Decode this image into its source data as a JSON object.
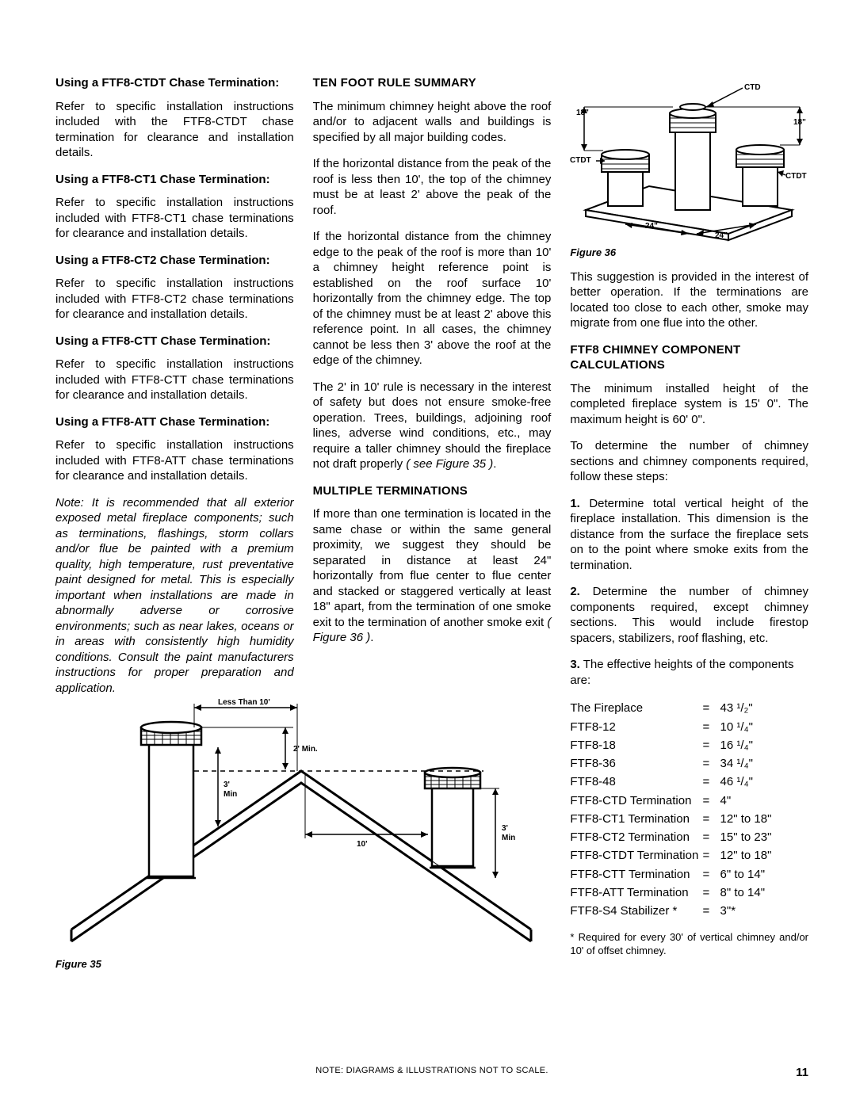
{
  "col1": {
    "sections": [
      {
        "heading": "Using a FTF8-CTDT Chase Termination:",
        "body": "Refer to specific installation instructions included with the FTF8-CTDT chase termination for clearance and installation details."
      },
      {
        "heading": "Using a FTF8-CT1 Chase Termination:",
        "body": "Refer to specific installation instructions included with FTF8-CT1 chase terminations for clearance and installation details."
      },
      {
        "heading": "Using a FTF8-CT2 Chase Termination:",
        "body": "Refer to specific installation instructions included with FTF8-CT2 chase terminations for clearance and installation details."
      },
      {
        "heading": "Using a FTF8-CTT Chase Termination:",
        "body": "Refer to specific installation instructions included with FTF8-CTT chase terminations for clearance and installation details."
      },
      {
        "heading": "Using a FTF8-ATT Chase Termination:",
        "body": "Refer to specific installation instructions included with FTF8-ATT chase terminations for clearance and installation details."
      }
    ],
    "note": "Note: It is recommended that all exterior exposed metal fireplace components; such as terminations, flashings, storm collars and/or flue be painted with a premium quality, high temperature, rust preventative paint designed for metal. This is especially important when installations are made in abnormally adverse or corrosive environments; such as near lakes, oceans or in areas with consistently high humidity conditions. Consult the paint manufacturers instructions for proper preparation and application."
  },
  "col2": {
    "h1": "TEN FOOT RULE SUMMARY",
    "p1": "The minimum chimney height above the roof and/or to adjacent walls and buildings is specified by all major building codes.",
    "p2": "If the horizontal distance from the peak of the roof is less then 10', the top of the chimney must be at least 2' above the peak of the roof.",
    "p3": "If the horizontal distance from the chimney edge to the peak of the roof is more than 10' a chimney height reference point is established on the roof surface 10' horizontally from the chimney edge. The top of the chimney must be at least 2' above this reference point. In all cases, the chimney cannot be less then 3' above the roof at the edge of the chimney.",
    "p4_pre": "The 2' in 10' rule is necessary in the interest of safety but does not ensure smoke-free operation. Trees, buildings, adjoining roof lines, adverse wind conditions, etc., may require a taller chimney should the fireplace not draft properly ",
    "p4_ref": "( see Figure 35 )",
    "p4_post": ".",
    "h2": "MULTIPLE TERMINATIONS",
    "p5_pre": "If more than one termination is located in the same chase or within the same general proximity, we suggest they should be separated in distance at least 24\" horizontally from flue center to flue center and stacked or staggered vertically at least 18\" apart, from the termination of one smoke exit to the termination of another smoke exit ",
    "p5_ref": "( Figure 36 )",
    "p5_post": "."
  },
  "col3": {
    "fig36_caption": "Figure 36",
    "p1": "This suggestion is provided in the interest of better operation. If the terminations are located too close to each other, smoke may migrate from one flue into the other.",
    "h1": "FTF8 CHIMNEY COMPONENT CALCULATIONS",
    "p2": "The minimum installed height of the completed fireplace system is 15' 0\". The maximum height is 60' 0\".",
    "p3": "To determine the number of chimney sections and chimney components required, follow these steps:",
    "s1_num": "1.",
    "s1": " Determine total vertical height of the fireplace installation. This dimension is the distance from the surface the fireplace sets on to the point where smoke exits from the termination.",
    "s2_num": "2.",
    "s2": " Determine the number of chimney components required, except chimney sections. This would include firestop spacers, stabilizers, roof flashing, etc.",
    "s3_num": "3.",
    "s3": " The effective heights of the components are:",
    "components": [
      {
        "name": "The Fireplace",
        "val": "43 ¹/₂\""
      },
      {
        "name": "FTF8-12",
        "val": "10 ¹/₄\""
      },
      {
        "name": "FTF8-18",
        "val": "16 ¹/₄\""
      },
      {
        "name": "FTF8-36",
        "val": "34 ¹/₄\""
      },
      {
        "name": "FTF8-48",
        "val": "46 ¹/₄\""
      },
      {
        "name": "FTF8-CTD Termination",
        "val": "4\""
      },
      {
        "name": "FTF8-CT1 Termination",
        "val": "12\" to 18\""
      },
      {
        "name": "FTF8-CT2 Termination",
        "val": "15\" to 23\""
      },
      {
        "name": "FTF8-CTDT Termination",
        "val": "12\" to 18\""
      },
      {
        "name": "FTF8-CTT Termination",
        "val": "6\" to 14\""
      },
      {
        "name": "FTF8-ATT Termination",
        "val": "8\" to 14\""
      },
      {
        "name": "FTF8-S4 Stabilizer *",
        "val": "3\"*"
      }
    ],
    "footnote": "* Required for every 30' of vertical chimney and/or 10' of offset chimney."
  },
  "fig35": {
    "caption": "Figure 35",
    "labels": {
      "less10": "Less Than 10'",
      "min2": "2' Min.",
      "min3l": "3'\nMin",
      "ten": "10'",
      "min3r": "3'\nMin"
    }
  },
  "fig36": {
    "labels": {
      "ctd": "CTD",
      "ctdt": "CTDT",
      "d18": "18\"",
      "d24": "24\""
    }
  },
  "footer": {
    "note": "NOTE: DIAGRAMS & ILLUSTRATIONS NOT TO SCALE.",
    "page": "11"
  },
  "colors": {
    "text": "#000000",
    "bg": "#ffffff",
    "stroke": "#000000",
    "hatch": "#000000"
  }
}
